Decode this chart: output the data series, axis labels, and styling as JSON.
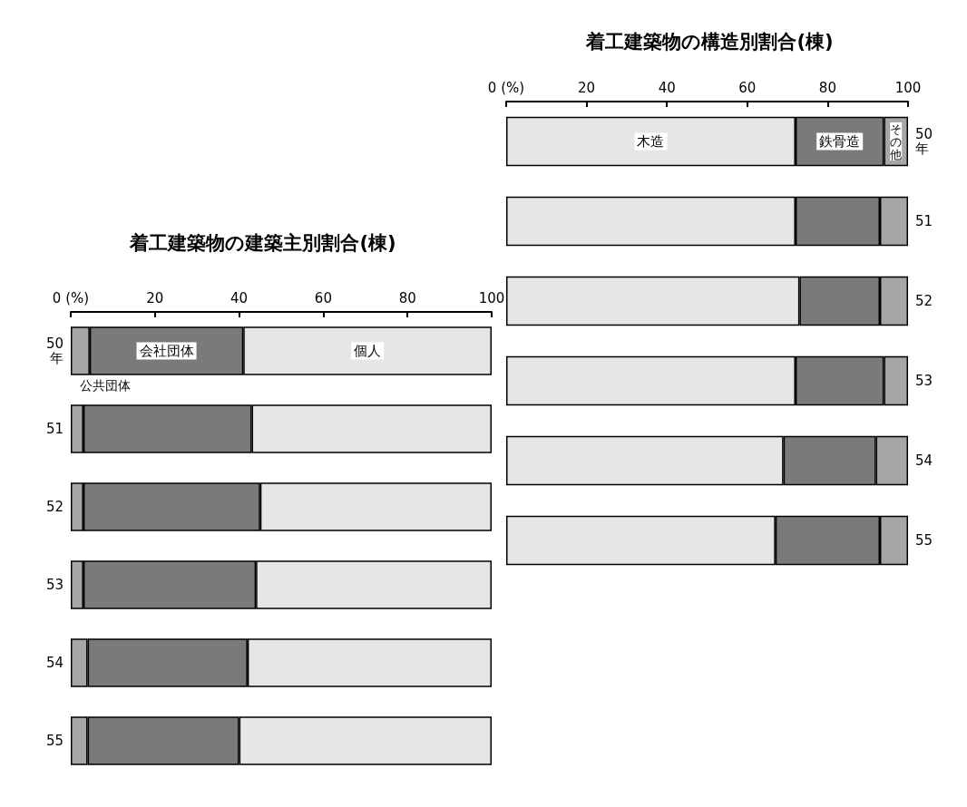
{
  "chart_data": [
    {
      "type": "bar",
      "orientation": "horizontal",
      "stacked": true,
      "title": "着工建築物の建築主別割合(棟)",
      "categories": [
        "50\n年",
        "51",
        "52",
        "53",
        "54",
        "55"
      ],
      "series": [
        {
          "name": "公共団体",
          "color": "#a6a6a6",
          "values": [
            4.5,
            3,
            3,
            3,
            4,
            4
          ]
        },
        {
          "name": "会社団体",
          "color": "#7a7a7a",
          "values": [
            36.5,
            40,
            42,
            41,
            38,
            36
          ]
        },
        {
          "name": "個人",
          "color": "#e6e6e6",
          "values": [
            59,
            57,
            55,
            56,
            58,
            60
          ]
        }
      ],
      "xlim": [
        0,
        100
      ],
      "xticks": [
        {
          "value": 0,
          "label": "0 (%)"
        },
        20,
        40,
        60,
        80,
        100
      ],
      "grid": false,
      "legend": false
    },
    {
      "type": "bar",
      "orientation": "horizontal",
      "stacked": true,
      "title": "着工建築物の構造別割合(棟)",
      "categories": [
        "50\n年",
        "51",
        "52",
        "53",
        "54",
        "55"
      ],
      "series": [
        {
          "name": "木造",
          "color": "#e6e6e6",
          "values": [
            72,
            72,
            73,
            72,
            69,
            67
          ]
        },
        {
          "name": "鉄骨造",
          "color": "#7a7a7a",
          "values": [
            22,
            21,
            20,
            22,
            23,
            26
          ]
        },
        {
          "name": "その他",
          "color": "#a6a6a6",
          "values": [
            6,
            7,
            7,
            6,
            8,
            7
          ]
        }
      ],
      "xlim": [
        0,
        100
      ],
      "xticks": [
        {
          "value": 0,
          "label": "0 (%)"
        },
        20,
        40,
        60,
        80,
        100
      ],
      "grid": false,
      "legend": false
    }
  ]
}
